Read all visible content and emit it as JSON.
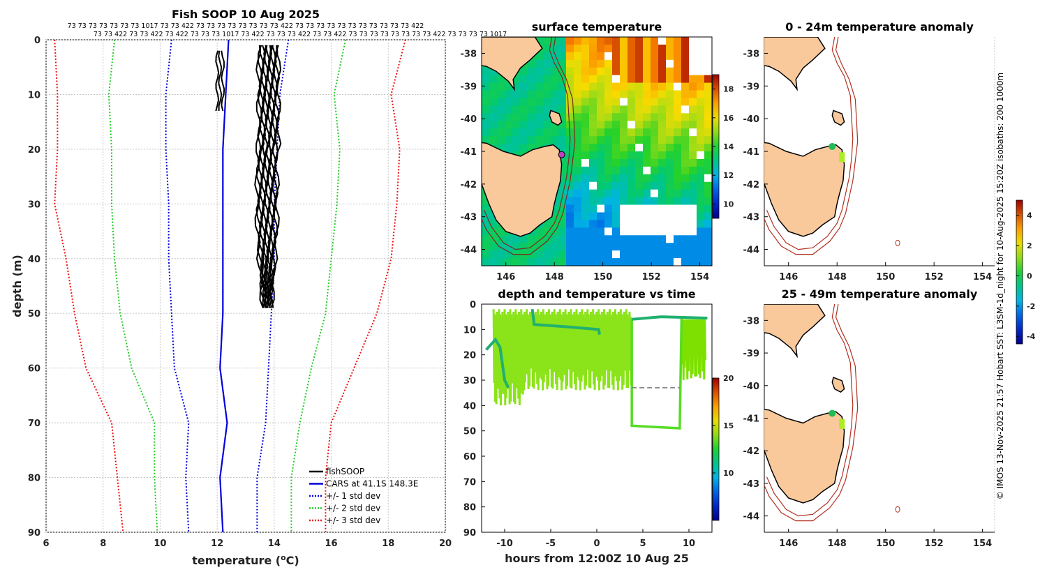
{
  "chart_data": [
    {
      "type": "line",
      "title": "Fish SOOP 10 Aug 2025",
      "xlabel": "temperature (",
      "xlabel_sup": "o",
      "xlabel_end": "C)",
      "ylabel": "depth (m)",
      "xlim": [
        6,
        20
      ],
      "ylim": [
        0,
        90
      ],
      "xticks": [
        "6",
        "8",
        "10",
        "12",
        "14",
        "16",
        "18",
        "20"
      ],
      "yticks": [
        "0",
        "10",
        "20",
        "30",
        "40",
        "50",
        "60",
        "70",
        "80",
        "90"
      ],
      "top_ids_row1": "73 73 73 73 73 73 73 1017 73 73 422 73 73 73 73 73 73 73 73 422 73 73 73 73 73 73 73 73 73 73 73 422",
      "top_ids_row2": "73 73 422 73 73 422 73 422 73 73 73 1017 73 422 73 73 73 422 73 73 422 73 73 73 73 73 73 73 73 422 73 73 73 73 1017",
      "legend": [
        {
          "label": "fishSOOP",
          "color": "#000000",
          "style": "solid"
        },
        {
          "label": "CARS at 41.1S 148.3E",
          "color": "#0000dd",
          "style": "solid"
        },
        {
          "label": "+/- 1 std dev",
          "color": "#0000dd",
          "style": "dotted"
        },
        {
          "label": "+/- 2 std dev",
          "color": "#22cc22",
          "style": "dotted"
        },
        {
          "label": "+/- 3 std dev",
          "color": "#ee1111",
          "style": "dotted"
        }
      ],
      "depths": [
        0,
        10,
        20,
        30,
        40,
        50,
        60,
        70,
        80,
        90
      ],
      "cars_mean": [
        12.4,
        12.3,
        12.2,
        12.2,
        12.2,
        12.2,
        12.1,
        12.35,
        12.1,
        12.2
      ],
      "std1": [
        [
          10.4,
          14.5
        ],
        [
          10.2,
          14.2
        ],
        [
          10.2,
          14.1
        ],
        [
          10.3,
          14.0
        ],
        [
          10.3,
          14.0
        ],
        [
          10.4,
          13.9
        ],
        [
          10.5,
          13.8
        ],
        [
          11.0,
          13.7
        ],
        [
          10.9,
          13.4
        ],
        [
          11.0,
          13.4
        ]
      ],
      "std2": [
        [
          8.4,
          16.5
        ],
        [
          8.2,
          16.1
        ],
        [
          8.3,
          16.3
        ],
        [
          8.3,
          16.2
        ],
        [
          8.4,
          16.0
        ],
        [
          8.6,
          15.8
        ],
        [
          9.0,
          15.3
        ],
        [
          9.8,
          14.9
        ],
        [
          9.8,
          14.6
        ],
        [
          9.9,
          14.6
        ]
      ],
      "std3": [
        [
          6.3,
          18.6
        ],
        [
          6.4,
          18.1
        ],
        [
          6.4,
          18.4
        ],
        [
          6.3,
          18.3
        ],
        [
          6.7,
          18.1
        ],
        [
          7.0,
          17.6
        ],
        [
          7.4,
          16.8
        ],
        [
          8.3,
          16.0
        ],
        [
          8.5,
          15.8
        ],
        [
          8.7,
          15.8
        ]
      ],
      "fishsoop_main": {
        "depth_range": [
          1,
          49
        ],
        "temp_center": 13.8,
        "spread": 0.35
      },
      "fishsoop_short": {
        "depth_range": [
          2,
          13
        ],
        "temp_center": 12.1,
        "spread": 0.1
      }
    },
    {
      "type": "heatmap",
      "title": "surface temperature",
      "xlim": [
        145,
        154.5
      ],
      "ylim": [
        -44.5,
        -37.5
      ],
      "xticks": [
        "146",
        "148",
        "150",
        "152",
        "154"
      ],
      "yticks": [
        "-38",
        "-39",
        "-40",
        "-41",
        "-42",
        "-43",
        "-44"
      ],
      "colorbar_ticks": [
        "10",
        "12",
        "14",
        "16",
        "18"
      ],
      "colorbar_range": [
        9,
        19
      ]
    },
    {
      "type": "scatter",
      "title": "depth and temperature vs time",
      "xlabel": "hours from 12:00Z 10 Aug 25",
      "xlim": [
        -12.5,
        12.5
      ],
      "ylim": [
        0,
        90
      ],
      "xticks": [
        "-10",
        "-5",
        "0",
        "5",
        "10"
      ],
      "yticks": [
        "0",
        "10",
        "20",
        "30",
        "40",
        "50",
        "60",
        "70",
        "80",
        "90"
      ],
      "colorbar_ticks": [
        "10",
        "15",
        "20"
      ],
      "colorbar_range": [
        5,
        20
      ]
    },
    {
      "type": "scatter",
      "title": "0 - 24m temperature anomaly",
      "xlim": [
        145,
        154.5
      ],
      "ylim": [
        -44.5,
        -37.5
      ],
      "xticks": [
        "146",
        "148",
        "150",
        "152",
        "154"
      ],
      "yticks": [
        "-38",
        "-39",
        "-40",
        "-41",
        "-42",
        "-43",
        "-44"
      ]
    },
    {
      "type": "scatter",
      "title": "25 - 49m temperature anomaly",
      "xlim": [
        145,
        154.5
      ],
      "ylim": [
        -44.5,
        -37.5
      ],
      "xticks": [
        "146",
        "148",
        "150",
        "152",
        "154"
      ],
      "yticks": [
        "-38",
        "-39",
        "-40",
        "-41",
        "-42",
        "-43",
        "-44"
      ],
      "colorbar_ticks": [
        "4",
        "2",
        "0",
        "-2",
        "-4"
      ],
      "colorbar_range": [
        -4.5,
        5
      ]
    }
  ],
  "side_caption": "© IMOS 13-Nov-2025 21:57 Hobart SST: L3SM-1d_night for 10-Aug-2025 15:20Z isobaths: 200  1000m"
}
